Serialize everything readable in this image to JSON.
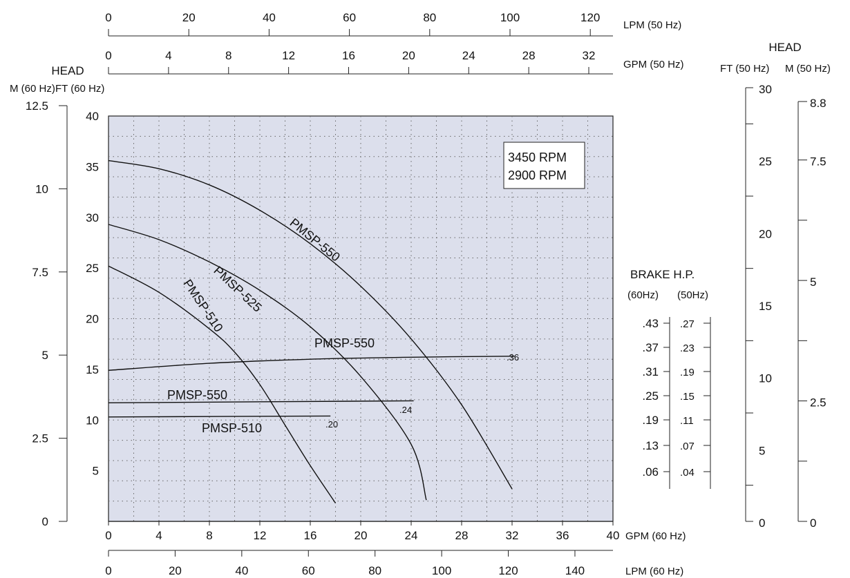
{
  "chart_data": {
    "type": "line",
    "x_axis_label": "GPM (60 Hz)",
    "x_range": [
      0,
      40
    ],
    "x_ticks": [
      "0",
      "4",
      "8",
      "12",
      "16",
      "20",
      "24",
      "28",
      "32",
      "36",
      "40"
    ],
    "y_range": [
      0,
      40
    ],
    "grid": true,
    "top_axes": {
      "lpm_50": {
        "label": "LPM (50 Hz)",
        "ticks": [
          "0",
          "20",
          "40",
          "60",
          "80",
          "100",
          "120"
        ]
      },
      "gpm_50": {
        "label": "GPM (50 Hz)",
        "ticks": [
          "0",
          "4",
          "8",
          "12",
          "16",
          "20",
          "24",
          "28",
          "32"
        ]
      }
    },
    "bottom_lpm": {
      "label": "LPM (60 Hz)",
      "ticks": [
        "0",
        "20",
        "40",
        "60",
        "80",
        "100",
        "120",
        "140"
      ]
    },
    "left_axes": {
      "title": "HEAD",
      "m60": {
        "label": "M (60 Hz)",
        "ticks": [
          "0",
          "2.5",
          "5",
          "7.5",
          "10",
          "12.5"
        ]
      },
      "ft60": {
        "label": "FT (60 Hz)",
        "ticks": [
          "5",
          "10",
          "15",
          "20",
          "25",
          "30",
          "35",
          "40"
        ]
      }
    },
    "right_head": {
      "title": "HEAD",
      "ft50": {
        "label": "FT (50 Hz)",
        "ticks": [
          "0",
          "5",
          "10",
          "15",
          "20",
          "25",
          "30"
        ]
      },
      "m50": {
        "label": "M (50 Hz)",
        "ticks": [
          "0",
          "2.5",
          "5",
          "7.5",
          "8.8"
        ]
      }
    },
    "brake_hp": {
      "title": "BRAKE H.P.",
      "col60_label": "(60Hz)",
      "col50_label": "(50Hz)",
      "hz60": [
        ".43",
        ".37",
        ".31",
        ".25",
        ".19",
        ".13",
        ".06"
      ],
      "hz50": [
        ".27",
        ".23",
        ".19",
        ".15",
        ".11",
        ".07",
        ".04"
      ]
    },
    "legend": [
      "3450 RPM",
      "2900 RPM"
    ],
    "head_curves": [
      {
        "name": "PMSP-550",
        "points": [
          [
            0,
            35.6
          ],
          [
            4,
            34.8
          ],
          [
            8,
            33.2
          ],
          [
            12,
            30.7
          ],
          [
            16,
            27.4
          ],
          [
            20,
            23.2
          ],
          [
            24,
            18.0
          ],
          [
            28,
            11.5
          ],
          [
            32,
            3.2
          ]
        ]
      },
      {
        "name": "PMSP-525",
        "points": [
          [
            0,
            29.3
          ],
          [
            4,
            27.8
          ],
          [
            8,
            25.6
          ],
          [
            12,
            22.8
          ],
          [
            16,
            19.2
          ],
          [
            20,
            14.3
          ],
          [
            24,
            7.6
          ],
          [
            25.2,
            2.1
          ]
        ]
      },
      {
        "name": "PMSP-510",
        "points": [
          [
            0,
            25.2
          ],
          [
            4,
            22.6
          ],
          [
            8,
            19.0
          ],
          [
            10,
            16.7
          ],
          [
            12,
            13.5
          ],
          [
            14,
            9.5
          ],
          [
            16,
            5.5
          ],
          [
            18,
            1.8
          ]
        ]
      }
    ],
    "power_curves": [
      {
        "name": "PMSP-550",
        "end_label": ".36",
        "points": [
          [
            0,
            14.9
          ],
          [
            8,
            15.6
          ],
          [
            16,
            16.0
          ],
          [
            24,
            16.2
          ],
          [
            32.2,
            16.3
          ]
        ]
      },
      {
        "name": "PMSP-550",
        "end_label": ".24",
        "points": [
          [
            0,
            11.7
          ],
          [
            24.2,
            11.9
          ]
        ]
      },
      {
        "name": "PMSP-510",
        "end_label": ".20",
        "points": [
          [
            0,
            10.3
          ],
          [
            17.6,
            10.4
          ]
        ]
      }
    ]
  }
}
